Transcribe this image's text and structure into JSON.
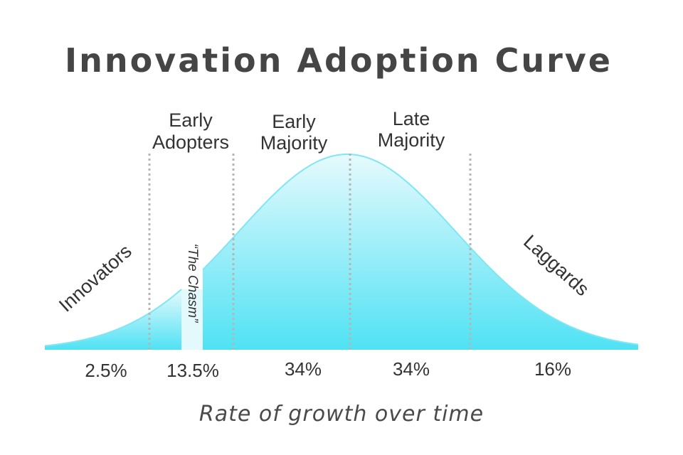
{
  "title": "Innovation Adoption Curve",
  "x_axis_label": "Rate of growth over time",
  "segments": [
    {
      "label": "Innovators",
      "percent": "2.5%"
    },
    {
      "label_line1": "Early",
      "label_line2": "Adopters",
      "percent": "13.5%"
    },
    {
      "label_line1": "Early",
      "label_line2": "Majority",
      "percent": "34%"
    },
    {
      "label_line1": "Late",
      "label_line2": "Majority",
      "percent": "34%"
    },
    {
      "label": "Laggards",
      "percent": "16%"
    }
  ],
  "chasm_label": "“The Chasm”",
  "colors": {
    "curve_stroke": "#7fe6f2",
    "fill_top": "#e6fafd",
    "fill_bottom": "#4fe2f4",
    "chasm_fill": "#e3f9fc",
    "divider": "#b5b5b5",
    "text": "#333333"
  }
}
